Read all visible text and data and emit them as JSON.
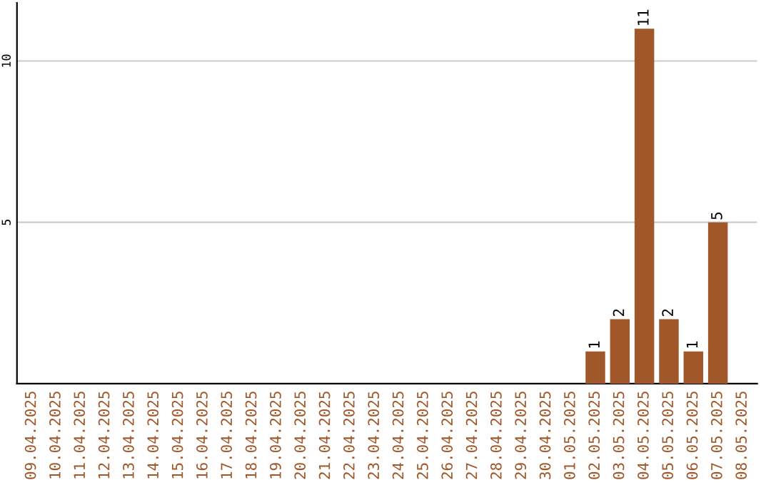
{
  "chart_data": {
    "type": "bar",
    "categories": [
      "09.04.2025",
      "10.04.2025",
      "11.04.2025",
      "12.04.2025",
      "13.04.2025",
      "14.04.2025",
      "15.04.2025",
      "16.04.2025",
      "17.04.2025",
      "18.04.2025",
      "19.04.2025",
      "20.04.2025",
      "21.04.2025",
      "22.04.2025",
      "23.04.2025",
      "24.04.2025",
      "25.04.2025",
      "26.04.2025",
      "27.04.2025",
      "28.04.2025",
      "29.04.2025",
      "30.04.2025",
      "01.05.2025",
      "02.05.2025",
      "03.05.2025",
      "04.05.2025",
      "05.05.2025",
      "06.05.2025",
      "07.05.2025",
      "08.05.2025"
    ],
    "values": [
      0,
      0,
      0,
      0,
      0,
      0,
      0,
      0,
      0,
      0,
      0,
      0,
      0,
      0,
      0,
      0,
      0,
      0,
      0,
      0,
      0,
      0,
      0,
      1,
      2,
      11,
      2,
      1,
      5,
      0
    ],
    "value_labels": [
      null,
      null,
      null,
      null,
      null,
      null,
      null,
      null,
      null,
      null,
      null,
      null,
      null,
      null,
      null,
      null,
      null,
      null,
      null,
      null,
      null,
      null,
      null,
      "1",
      "2",
      "11",
      "2",
      "1",
      "5",
      null
    ],
    "color": "#a0582a",
    "ylim": [
      0,
      11.8
    ],
    "yticks": [
      5,
      10
    ],
    "grid": "y"
  }
}
